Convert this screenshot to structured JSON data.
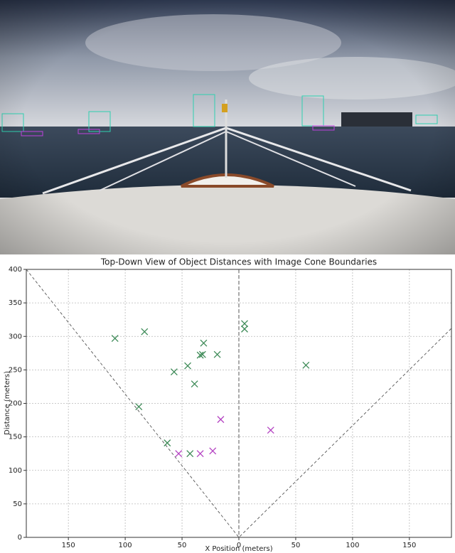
{
  "chart_data": {
    "type": "scatter",
    "title": "Top-Down View of Object Distances with Image Cone Boundaries",
    "x_label": "X Position (meters)",
    "y_label": "Distance (meters)",
    "xlim": [
      -187,
      187
    ],
    "ylim": [
      0,
      400
    ],
    "xticks": [
      {
        "value": -150,
        "label": "150"
      },
      {
        "value": -100,
        "label": "100"
      },
      {
        "value": -50,
        "label": "50"
      },
      0,
      50,
      100,
      150
    ],
    "yticks": [
      0,
      50,
      100,
      150,
      200,
      250,
      300,
      350,
      400
    ],
    "grid": true,
    "cone": {
      "color": "#555555",
      "x": [
        -187,
        0,
        187
      ],
      "y": [
        400,
        0,
        312
      ]
    },
    "center_line": {
      "color": "#555555",
      "x": 0
    },
    "series": [
      {
        "color": "#3d8a57",
        "x": [
          -109,
          -83,
          5,
          5,
          -31,
          -34,
          -32,
          -19,
          -45,
          -57,
          -39,
          59,
          -88,
          -63,
          -43
        ],
        "y": [
          297,
          307,
          319,
          311,
          290,
          272,
          273,
          273,
          256,
          247,
          229,
          257,
          195,
          141,
          125
        ]
      },
      {
        "color": "#b443c2",
        "x": [
          -53,
          -34,
          -23,
          -16,
          28
        ],
        "y": [
          125,
          125,
          129,
          176,
          160
        ]
      }
    ]
  }
}
